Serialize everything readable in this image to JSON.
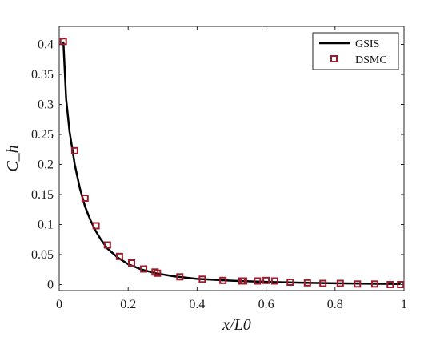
{
  "chart_data": {
    "type": "line",
    "xlabel": "x/L0",
    "ylabel": "C_h",
    "xlim": [
      0,
      1
    ],
    "ylim": [
      -0.01,
      0.43
    ],
    "x_ticks": [
      "0",
      "0.2",
      "0.4",
      "0.6",
      "0.8",
      "1"
    ],
    "y_ticks": [
      "0",
      "0.05",
      "0.1",
      "0.15",
      "0.2",
      "0.25",
      "0.3",
      "0.35",
      "0.4"
    ],
    "legend_position": "top-right",
    "grid": false,
    "series": [
      {
        "name": "GSIS",
        "style": "line",
        "color": "#000000",
        "x": [
          0.012,
          0.02,
          0.03,
          0.045,
          0.06,
          0.075,
          0.09,
          0.105,
          0.12,
          0.14,
          0.17,
          0.2,
          0.24,
          0.28,
          0.33,
          0.4,
          0.5,
          0.6,
          0.7,
          0.8,
          0.9,
          0.99
        ],
        "y": [
          0.405,
          0.31,
          0.255,
          0.2,
          0.16,
          0.13,
          0.108,
          0.09,
          0.076,
          0.06,
          0.045,
          0.034,
          0.025,
          0.019,
          0.014,
          0.0095,
          0.0065,
          0.0045,
          0.0032,
          0.0022,
          0.0015,
          0.001
        ]
      },
      {
        "name": "DSMC",
        "style": "marker-square",
        "color": "#9b1c2c",
        "x": [
          0.012,
          0.045,
          0.075,
          0.107,
          0.14,
          0.175,
          0.21,
          0.245,
          0.278,
          0.285,
          0.35,
          0.415,
          0.475,
          0.53,
          0.535,
          0.575,
          0.6,
          0.625,
          0.67,
          0.72,
          0.765,
          0.815,
          0.865,
          0.915,
          0.96,
          0.99
        ],
        "y": [
          0.405,
          0.223,
          0.144,
          0.098,
          0.066,
          0.047,
          0.036,
          0.026,
          0.021,
          0.019,
          0.013,
          0.009,
          0.007,
          0.006,
          0.006,
          0.006,
          0.007,
          0.006,
          0.004,
          0.003,
          0.002,
          0.002,
          0.001,
          0.001,
          0.0,
          0.0
        ]
      }
    ]
  }
}
